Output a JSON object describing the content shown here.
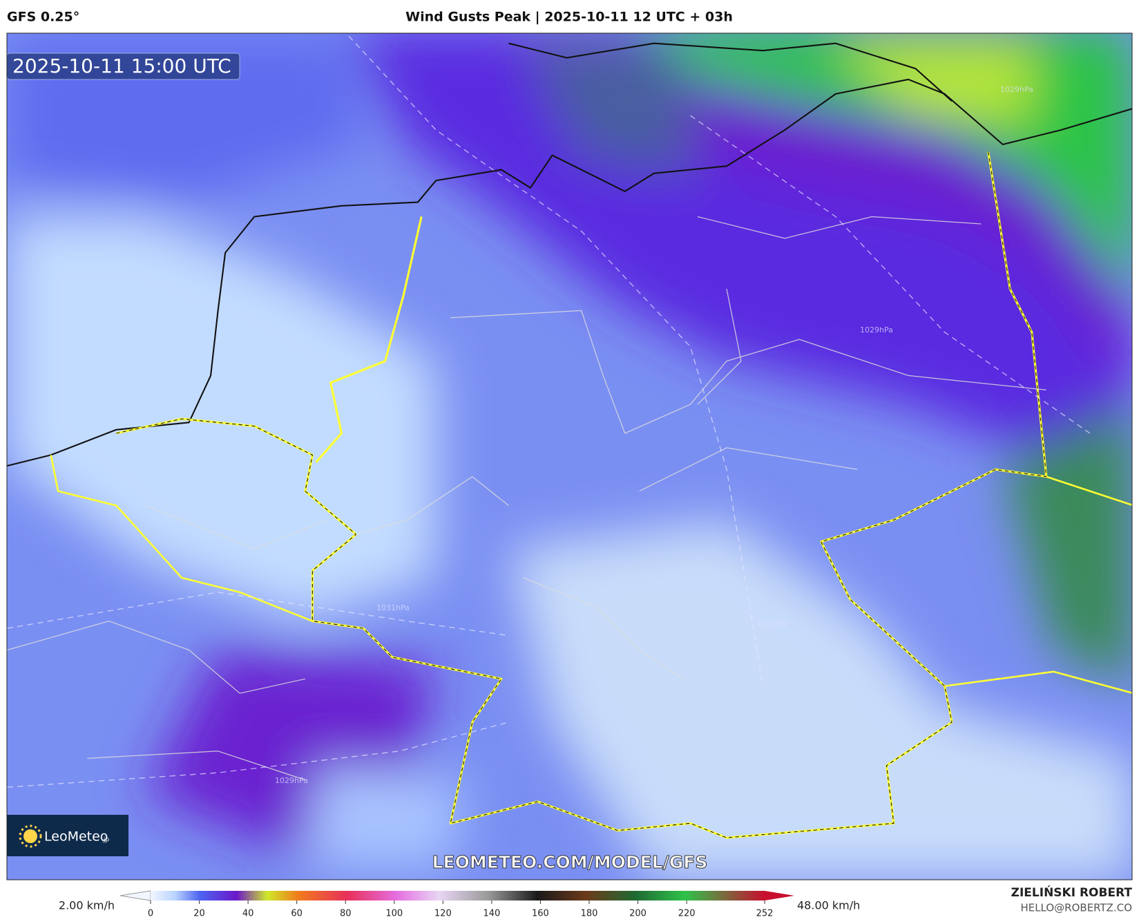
{
  "header": {
    "model": "GFS 0.25°",
    "title": "Wind Gusts Peak | 2025-10-11 12 UTC + 03h"
  },
  "map": {
    "timestamp": "2025-10-11 15:00 UTC",
    "logo": "LeoMeteo",
    "logo_suffix": ".jp",
    "watermark": "LEOMETEO.COM/MODEL/GFS",
    "isobar_labels": [
      "1029hPa",
      "1029hPa",
      "1031hPa",
      "1031hPa",
      "1029hPa"
    ]
  },
  "colorbar": {
    "min_label": "2.00 km/h",
    "max_label": "48.00 km/h",
    "ticks": [
      0,
      20,
      40,
      60,
      80,
      100,
      120,
      140,
      160,
      180,
      200,
      220,
      252
    ]
  },
  "footer": {
    "author": "ZIELIŃSKI ROBERT",
    "email": "HELLO@ROBERTZ.CO"
  }
}
